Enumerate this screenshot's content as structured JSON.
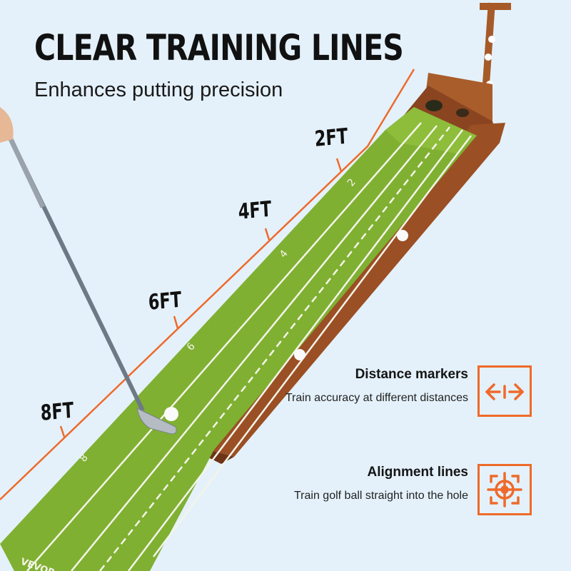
{
  "header": {
    "title": "CLEAR TRAINING LINES",
    "subtitle": "Enhances putting precision"
  },
  "distance_labels": [
    "2FT",
    "4FT",
    "6FT",
    "8FT"
  ],
  "mat_markings": [
    "2",
    "4",
    "6",
    "8"
  ],
  "brand": "VEVOR",
  "features": [
    {
      "title": "Distance markers",
      "description": "Train accuracy at different distances",
      "icon": "arrows-left-right-icon"
    },
    {
      "title": "Alignment lines",
      "description": "Train golf ball straight into the hole",
      "icon": "target-crosshair-icon"
    }
  ],
  "colors": {
    "accent": "#ee6a2b",
    "background": "#e4f1fa",
    "mat": "#7fb032",
    "wood": "#9b4f24"
  }
}
